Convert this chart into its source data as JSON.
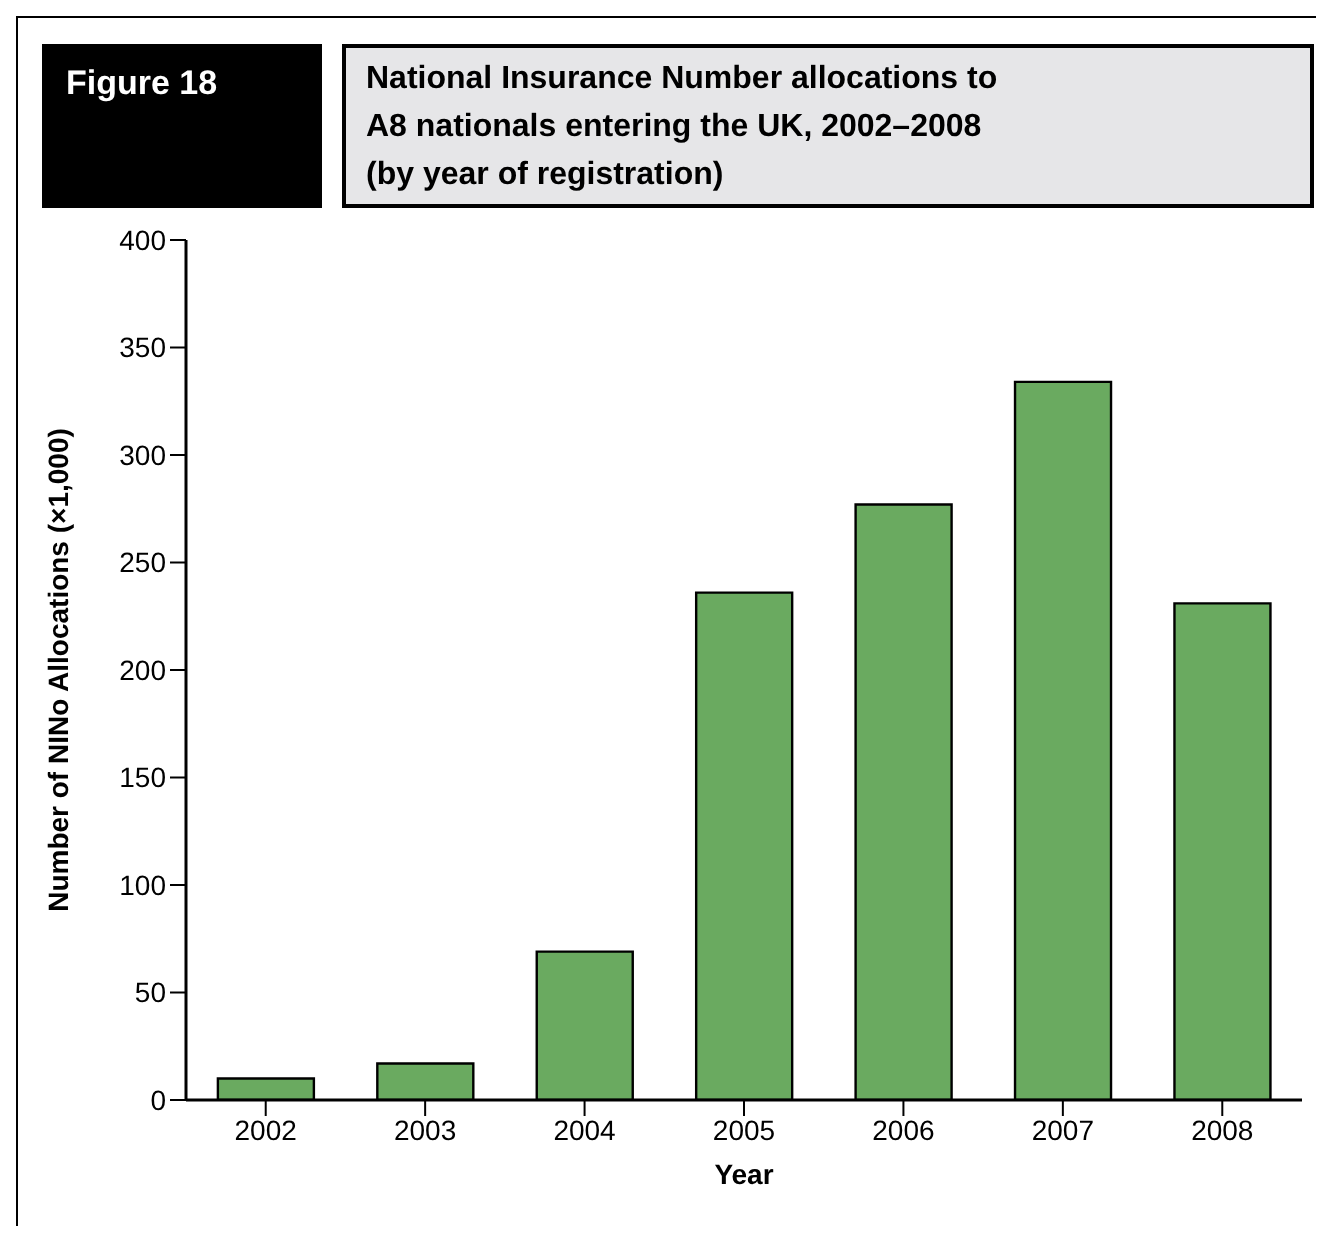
{
  "chart_data": {
    "type": "bar",
    "title": "National Insurance Number allocations to A8 nationals entering the UK, 2002–2008 (by year of registration)",
    "annotations": [
      "Figure 18"
    ],
    "xlabel": "Year",
    "ylabel": "Number of NINo Allocations (×1,000)",
    "categories": [
      "2002",
      "2003",
      "2004",
      "2005",
      "2006",
      "2007",
      "2008"
    ],
    "values": [
      10,
      17,
      69,
      236,
      277,
      334,
      231
    ],
    "color": "#6aaa60",
    "ylim": [
      0,
      400
    ],
    "yticks": [
      0,
      50,
      100,
      150,
      200,
      250,
      300,
      350,
      400
    ],
    "grid": false,
    "legend": false
  }
}
